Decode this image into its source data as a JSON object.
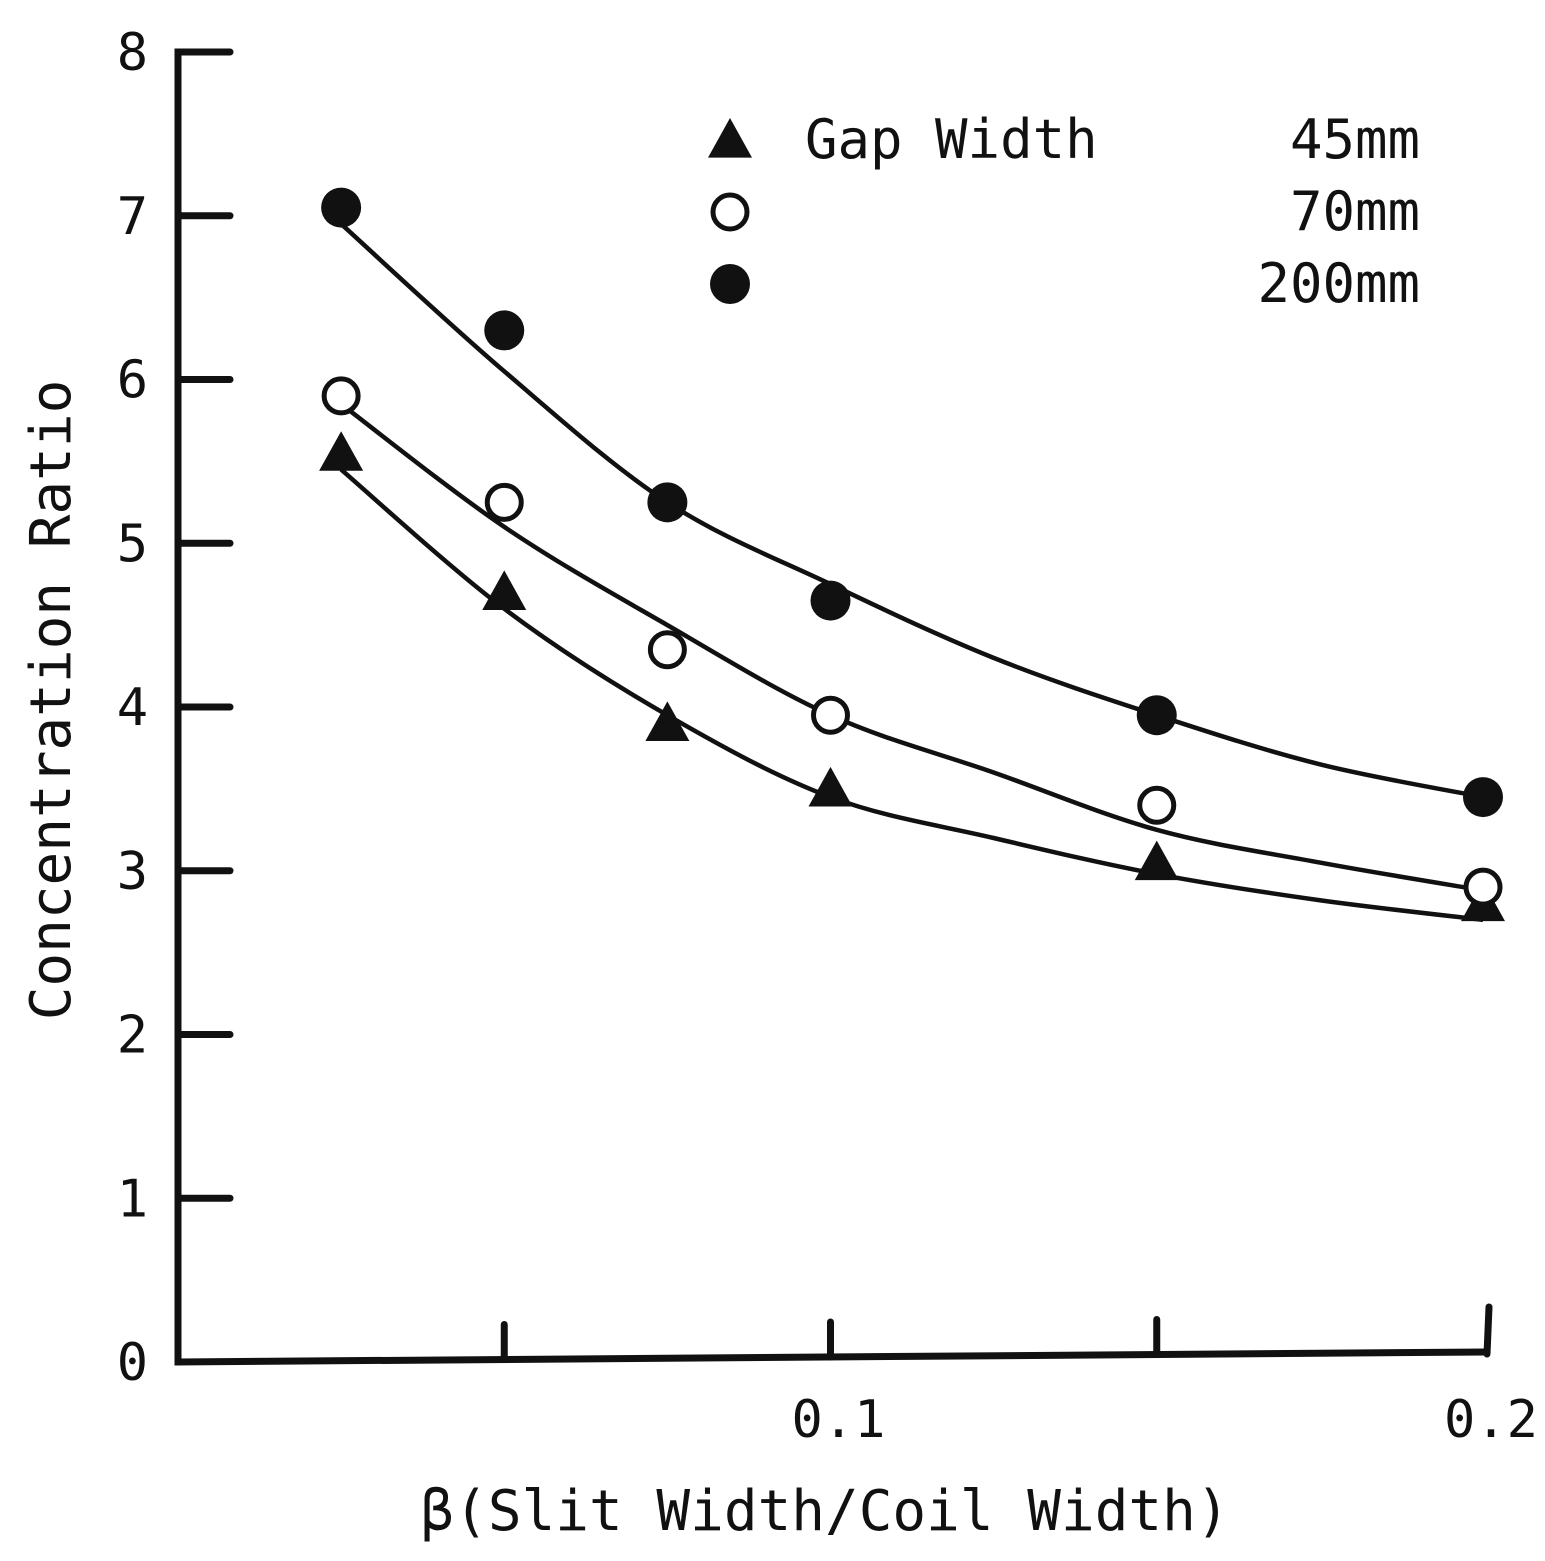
{
  "chart_data": {
    "type": "scatter",
    "title": "",
    "xlabel": "β(Slit Width/Coil Width)",
    "ylabel": "Concentration Ratio",
    "xlim": [
      0,
      0.2
    ],
    "ylim": [
      0,
      8
    ],
    "x_ticks": [
      0.025,
      0.05,
      0.075,
      0.1,
      0.125,
      0.15,
      0.175,
      0.2
    ],
    "x_tick_labels": [
      {
        "value": 0.1,
        "label": "0.1"
      },
      {
        "value": 0.2,
        "label": "0.2"
      }
    ],
    "y_ticks": [
      {
        "value": 0,
        "label": "0"
      },
      {
        "value": 1,
        "label": "1"
      },
      {
        "value": 2,
        "label": "2"
      },
      {
        "value": 3,
        "label": "3"
      },
      {
        "value": 4,
        "label": "4"
      },
      {
        "value": 5,
        "label": "5"
      },
      {
        "value": 6,
        "label": "6"
      },
      {
        "value": 7,
        "label": "7"
      },
      {
        "value": 8,
        "label": "8"
      }
    ],
    "x_major_ticks_drawn": [
      0.05,
      0.1,
      0.15,
      0.2
    ],
    "legend": {
      "title": "Gap Width",
      "placement": "top-right"
    },
    "grid": false,
    "series": [
      {
        "name": "45mm",
        "marker": "filled-triangle",
        "x": [
          0.025,
          0.05,
          0.075,
          0.1,
          0.15,
          0.2
        ],
        "y": [
          5.55,
          4.7,
          3.9,
          3.5,
          3.05,
          2.8
        ],
        "fit_curve": [
          [
            0.025,
            5.45
          ],
          [
            0.05,
            4.6
          ],
          [
            0.075,
            3.95
          ],
          [
            0.1,
            3.45
          ],
          [
            0.125,
            3.2
          ],
          [
            0.15,
            2.98
          ],
          [
            0.175,
            2.82
          ],
          [
            0.2,
            2.7
          ]
        ]
      },
      {
        "name": "70mm",
        "marker": "open-circle",
        "x": [
          0.025,
          0.05,
          0.075,
          0.1,
          0.15,
          0.2
        ],
        "y": [
          5.9,
          5.25,
          4.35,
          3.95,
          3.4,
          2.9
        ],
        "fit_curve": [
          [
            0.025,
            5.85
          ],
          [
            0.05,
            5.1
          ],
          [
            0.075,
            4.5
          ],
          [
            0.1,
            3.95
          ],
          [
            0.125,
            3.6
          ],
          [
            0.15,
            3.25
          ],
          [
            0.175,
            3.05
          ],
          [
            0.2,
            2.88
          ]
        ]
      },
      {
        "name": "200mm",
        "marker": "filled-circle",
        "x": [
          0.025,
          0.05,
          0.075,
          0.1,
          0.15,
          0.2
        ],
        "y": [
          7.05,
          6.3,
          5.25,
          4.65,
          3.95,
          3.45
        ],
        "fit_curve": [
          [
            0.025,
            6.95
          ],
          [
            0.05,
            6.05
          ],
          [
            0.075,
            5.25
          ],
          [
            0.1,
            4.75
          ],
          [
            0.125,
            4.3
          ],
          [
            0.15,
            3.95
          ],
          [
            0.175,
            3.65
          ],
          [
            0.2,
            3.45
          ]
        ]
      }
    ]
  }
}
